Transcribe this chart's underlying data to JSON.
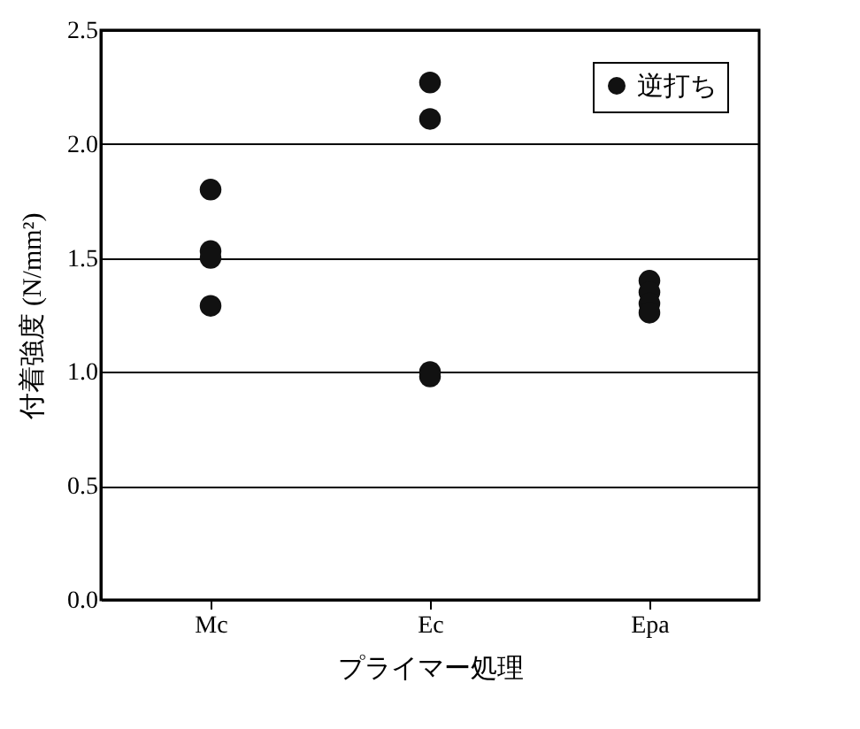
{
  "chart_data": {
    "type": "scatter",
    "xlabel": "プライマー処理",
    "ylabel": "付着強度 (N/mm²)",
    "categories": [
      "Mc",
      "Ec",
      "Epa"
    ],
    "series": [
      {
        "name": "逆打ち",
        "color": "#111111",
        "x": [
          "Mc",
          "Mc",
          "Mc",
          "Mc",
          "Ec",
          "Ec",
          "Ec",
          "Ec",
          "Epa",
          "Epa",
          "Epa",
          "Epa"
        ],
        "values": [
          1.8,
          1.53,
          1.5,
          1.29,
          2.27,
          2.11,
          1.0,
          0.98,
          1.4,
          1.35,
          1.3,
          1.26
        ]
      }
    ],
    "ylim": [
      0,
      2.5
    ],
    "yticks": [
      {
        "value": 0,
        "label": "0.0"
      },
      0.5,
      {
        "value": 1,
        "label": "1.0"
      },
      1.5,
      {
        "value": 2,
        "label": "2.0"
      },
      2.5
    ],
    "grid": "y",
    "legend": "top right",
    "marker": "circle"
  }
}
